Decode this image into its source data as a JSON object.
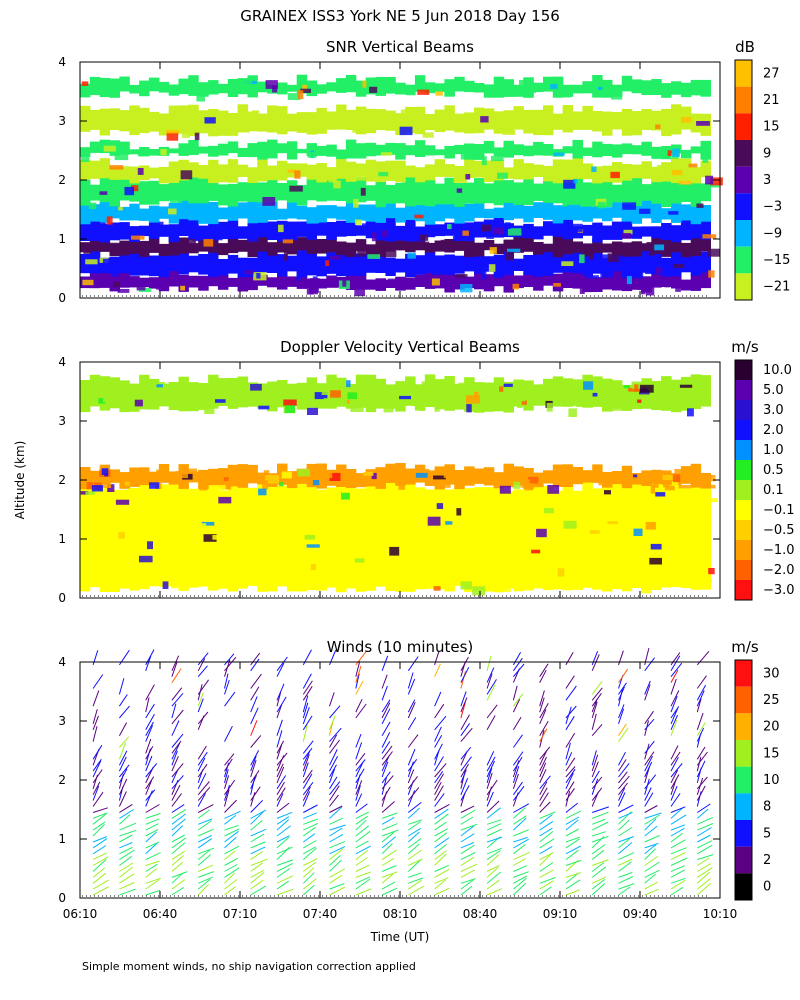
{
  "figure": {
    "title": "GRAINEX ISS3 York NE   5 Jun 2018 Day 156",
    "ylabel": "Altitude (km)",
    "xlabel": "Time (UT)",
    "footnote": "Simple moment winds, no ship navigation correction applied"
  },
  "x_ticks": [
    "06:10",
    "06:40",
    "07:10",
    "07:40",
    "08:10",
    "08:40",
    "09:10",
    "09:40",
    "10:10"
  ],
  "y_ticks": [
    "0",
    "1",
    "2",
    "3",
    "4"
  ],
  "chart_data": [
    {
      "type": "heatmap",
      "title": "SNR Vertical Beams",
      "units": "dB",
      "x_range": [
        "06:10",
        "10:10"
      ],
      "y_range_km": [
        0,
        4
      ],
      "colorbar_labels": [
        "27",
        "21",
        "15",
        "9",
        "3",
        "−3",
        "−9",
        "−15",
        "−21"
      ],
      "colorbar_colors": [
        "#ffc000",
        "#ff8000",
        "#ff2000",
        "#4a0a5a",
        "#5a00b0",
        "#1010ff",
        "#00b4ff",
        "#22ee66",
        "#c8f020"
      ],
      "layers": [
        {
          "y_bottom": 0.15,
          "y_top": 0.4,
          "color": "#5a00b0"
        },
        {
          "y_bottom": 0.4,
          "y_top": 0.75,
          "color": "#1010ff"
        },
        {
          "y_bottom": 0.75,
          "y_top": 1.0,
          "color": "#4a0a5a"
        },
        {
          "y_bottom": 1.0,
          "y_top": 1.3,
          "color": "#1010ff"
        },
        {
          "y_bottom": 1.3,
          "y_top": 1.6,
          "color": "#00b4ff"
        },
        {
          "y_bottom": 1.6,
          "y_top": 2.0,
          "color": "#22ee66"
        },
        {
          "y_bottom": 2.0,
          "y_top": 2.3,
          "color": "#c8f020"
        },
        {
          "y_bottom": 2.4,
          "y_top": 2.6,
          "color": "#22ee66"
        },
        {
          "y_bottom": 2.8,
          "y_top": 3.2,
          "color": "#c8f020"
        },
        {
          "y_bottom": 3.45,
          "y_top": 3.7,
          "color": "#22ee66"
        }
      ]
    },
    {
      "type": "heatmap",
      "title": "Doppler Velocity Vertical Beams",
      "units": "m/s",
      "x_range": [
        "06:10",
        "10:10"
      ],
      "y_range_km": [
        0,
        4
      ],
      "colorbar_labels": [
        "10.0",
        "5.0",
        "3.0",
        "2.0",
        "1.0",
        "0.5",
        "0.1",
        "−0.1",
        "−0.5",
        "−1.0",
        "−2.0",
        "−3.0"
      ],
      "colorbar_colors": [
        "#2a0030",
        "#5a00b0",
        "#2a10d0",
        "#1010ff",
        "#0090ff",
        "#22ee22",
        "#a0f020",
        "#ffff00",
        "#ffd000",
        "#ffa000",
        "#ff6000",
        "#ff1010"
      ],
      "layers": [
        {
          "y_bottom": 0.15,
          "y_top": 1.9,
          "color": "#ffff00"
        },
        {
          "y_bottom": 1.9,
          "y_top": 2.2,
          "color": "#ffa000"
        },
        {
          "y_bottom": 3.2,
          "y_top": 3.7,
          "color": "#a0f020"
        }
      ]
    },
    {
      "type": "wind_barbs",
      "title": "Winds (10 minutes)",
      "units": "m/s",
      "x_range": [
        "06:10",
        "10:10"
      ],
      "y_range_km": [
        0,
        4
      ],
      "colorbar_labels": [
        "30",
        "25",
        "20",
        "15",
        "10",
        "8",
        "5",
        "2",
        "0"
      ],
      "colorbar_colors": [
        "#ff1010",
        "#ff6000",
        "#ffb000",
        "#a0f020",
        "#22ee66",
        "#00b4ff",
        "#1010ff",
        "#5a0080",
        "#000000"
      ]
    }
  ]
}
